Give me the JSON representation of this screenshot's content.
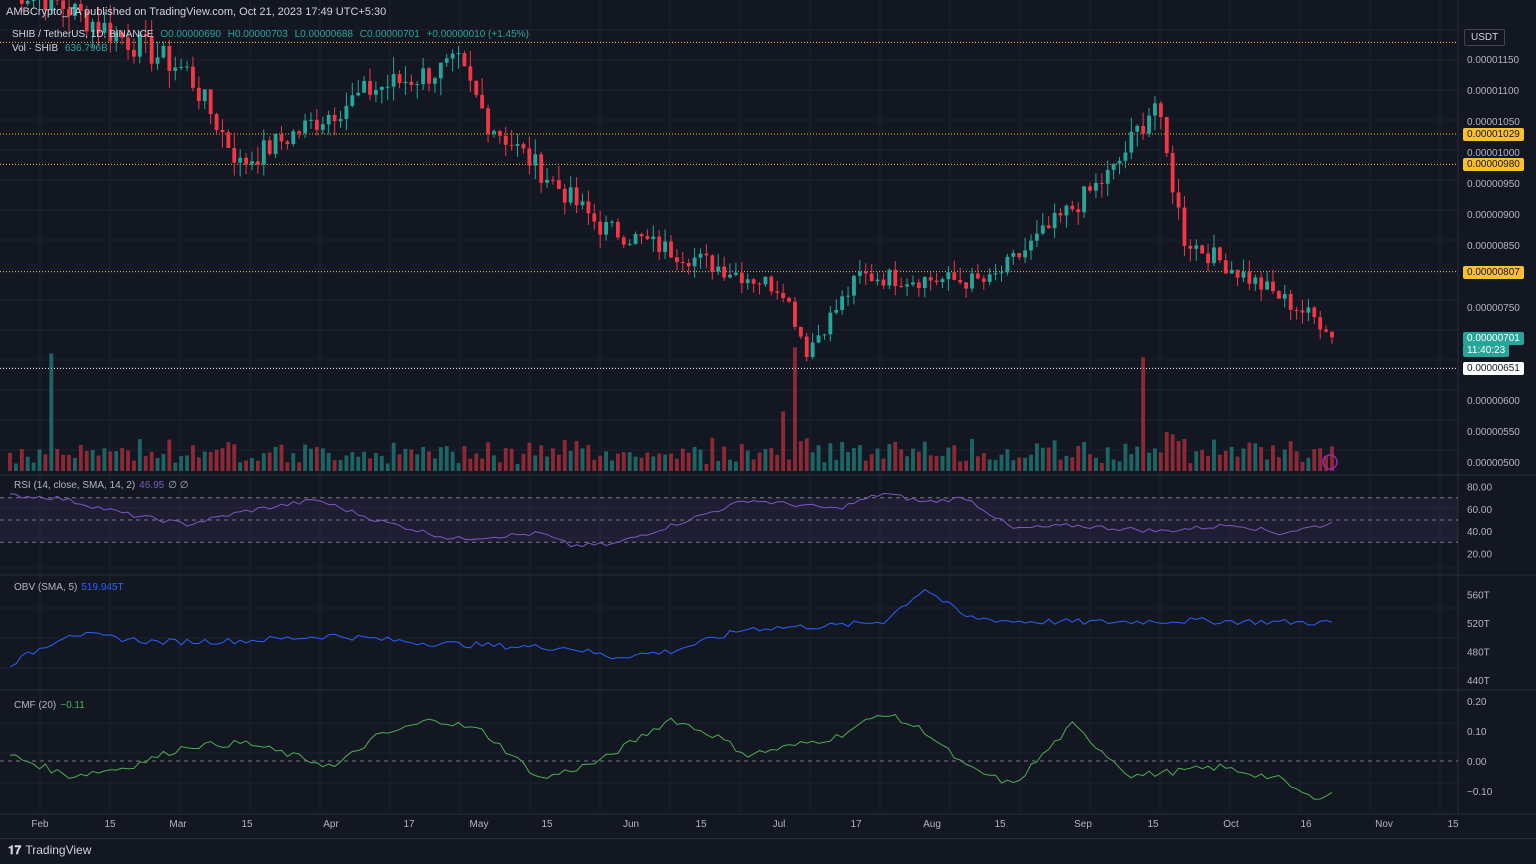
{
  "header": {
    "published": "AMBCrypto_TA published on TradingView.com, Oct 21, 2023 17:49 UTC+5:30",
    "symbol": "SHIB / TetherUS, 1D, BINANCE",
    "open": "O0.00000690",
    "high": "H0.00000703",
    "low": "L0.00000688",
    "close": "C0.00000701",
    "change": "+0.00000010 (+1.45%)",
    "volume_label": "Vol · SHIB",
    "volume_value": "636.796B"
  },
  "currency": "USDT",
  "price_axis": [
    "0.00001150",
    "0.00001100",
    "0.00001050",
    "0.00001000",
    "0.00000950",
    "0.00000900",
    "0.00000850",
    "0.00000750",
    "0.00000600",
    "0.00000550",
    "0.00000500"
  ],
  "levels": [
    {
      "price": "0.00001029",
      "color": "#fbc02d"
    },
    {
      "price": "0.00000980",
      "color": "#fbc02d"
    },
    {
      "price": "0.00000807",
      "color": "#fbc02d"
    },
    {
      "price": "0.00000651",
      "color": "#ffffff"
    }
  ],
  "current_price": "0.00000701",
  "countdown": "11:40:23",
  "rsi": {
    "label": "RSI (14, close, SMA, 14, 2)",
    "value": "46.95",
    "extra": "∅ ∅",
    "axis": [
      "80.00",
      "60.00",
      "40.00",
      "20.00"
    ]
  },
  "obv": {
    "label": "OBV (SMA, 5)",
    "value": "519.945T",
    "axis": [
      "560T",
      "520T",
      "480T",
      "440T"
    ]
  },
  "cmf": {
    "label": "CMF (20)",
    "value": "−0.11",
    "axis": [
      "0.20",
      "0.10",
      "0.00",
      "−0.10"
    ]
  },
  "time_axis": [
    "Feb",
    "15",
    "Mar",
    "15",
    "Apr",
    "17",
    "May",
    "15",
    "Jun",
    "15",
    "Jul",
    "17",
    "Aug",
    "15",
    "Sep",
    "15",
    "Oct",
    "16",
    "Nov",
    "15"
  ],
  "branding": "TradingView",
  "colors": {
    "up": "#26a69a",
    "down": "#f23645",
    "rsi": "#7e57c2",
    "obv": "#2962ff",
    "cmf": "#4caf50",
    "level": "#fbc02d"
  },
  "chart_data": [
    {
      "type": "candlestick",
      "title": "SHIB / TetherUS, 1D, BINANCE",
      "x_range": [
        "2023-01-30",
        "2023-11-18"
      ],
      "ylim": [
        4.9e-06,
        1.18e-05
      ],
      "key_points": [
        {
          "date": "2023-02-05",
          "close": 1.25e-05
        },
        {
          "date": "2023-03-01",
          "close": 1.13e-05
        },
        {
          "date": "2023-03-10",
          "close": 9.8e-06
        },
        {
          "date": "2023-04-01",
          "close": 1.1e-05
        },
        {
          "date": "2023-04-16",
          "close": 1.14e-05
        },
        {
          "date": "2023-04-21",
          "close": 1.05e-05
        },
        {
          "date": "2023-05-10",
          "close": 8.8e-06
        },
        {
          "date": "2023-06-10",
          "close": 7.8e-06
        },
        {
          "date": "2023-06-14",
          "close": 6.8e-06
        },
        {
          "date": "2023-06-23",
          "close": 8e-06
        },
        {
          "date": "2023-07-15",
          "close": 7.9e-06
        },
        {
          "date": "2023-08-05",
          "close": 9.7e-06
        },
        {
          "date": "2023-08-12",
          "close": 1.08e-05
        },
        {
          "date": "2023-08-17",
          "close": 8.6e-06
        },
        {
          "date": "2023-09-10",
          "close": 7.2e-06
        },
        {
          "date": "2023-10-01",
          "close": 7.4e-06
        },
        {
          "date": "2023-10-12",
          "close": 6.9e-06
        },
        {
          "date": "2023-10-19",
          "close": 6.7e-06
        },
        {
          "date": "2023-10-21",
          "close": 7.01e-06
        }
      ],
      "horizontal_levels": [
        1.029e-05,
        9.8e-06,
        8.07e-06,
        6.51e-06
      ]
    },
    {
      "type": "line",
      "title": "RSI (14, close, SMA, 14, 2)",
      "ylim": [
        15,
        85
      ],
      "bands": [
        30,
        50,
        70
      ],
      "key_points": [
        [
          0,
          72
        ],
        [
          8,
          70
        ],
        [
          20,
          55
        ],
        [
          30,
          46
        ],
        [
          40,
          58
        ],
        [
          52,
          68
        ],
        [
          62,
          50
        ],
        [
          75,
          33
        ],
        [
          90,
          38
        ],
        [
          95,
          27
        ],
        [
          102,
          28
        ],
        [
          112,
          45
        ],
        [
          125,
          68
        ],
        [
          140,
          60
        ],
        [
          148,
          74
        ],
        [
          155,
          66
        ],
        [
          162,
          70
        ],
        [
          170,
          42
        ],
        [
          180,
          45
        ],
        [
          195,
          40
        ],
        [
          208,
          46
        ],
        [
          215,
          38
        ],
        [
          224,
          47
        ]
      ]
    },
    {
      "type": "line",
      "title": "OBV (SMA, 5)",
      "ylim": [
        430,
        580
      ],
      "unit": "T",
      "key_points": [
        [
          0,
          462
        ],
        [
          10,
          505
        ],
        [
          25,
          493
        ],
        [
          40,
          495
        ],
        [
          55,
          502
        ],
        [
          70,
          492
        ],
        [
          85,
          487
        ],
        [
          95,
          485
        ],
        [
          102,
          472
        ],
        [
          112,
          480
        ],
        [
          125,
          512
        ],
        [
          140,
          516
        ],
        [
          148,
          522
        ],
        [
          155,
          568
        ],
        [
          162,
          528
        ],
        [
          170,
          522
        ],
        [
          185,
          521
        ],
        [
          200,
          523
        ],
        [
          215,
          521
        ],
        [
          224,
          520
        ]
      ]
    },
    {
      "type": "line",
      "title": "CMF (20)",
      "ylim": [
        -0.17,
        0.22
      ],
      "key_points": [
        [
          0,
          0.02
        ],
        [
          10,
          -0.05
        ],
        [
          20,
          -0.02
        ],
        [
          30,
          0.05
        ],
        [
          40,
          0.06
        ],
        [
          55,
          -0.02
        ],
        [
          62,
          0.08
        ],
        [
          72,
          0.14
        ],
        [
          80,
          0.1
        ],
        [
          90,
          -0.06
        ],
        [
          100,
          0.0
        ],
        [
          112,
          0.14
        ],
        [
          120,
          0.08
        ],
        [
          125,
          0.02
        ],
        [
          140,
          0.08
        ],
        [
          148,
          0.16
        ],
        [
          155,
          0.1
        ],
        [
          162,
          -0.02
        ],
        [
          170,
          -0.08
        ],
        [
          180,
          0.12
        ],
        [
          190,
          -0.05
        ],
        [
          205,
          -0.02
        ],
        [
          215,
          -0.06
        ],
        [
          220,
          -0.12
        ],
        [
          224,
          -0.11
        ]
      ]
    }
  ]
}
